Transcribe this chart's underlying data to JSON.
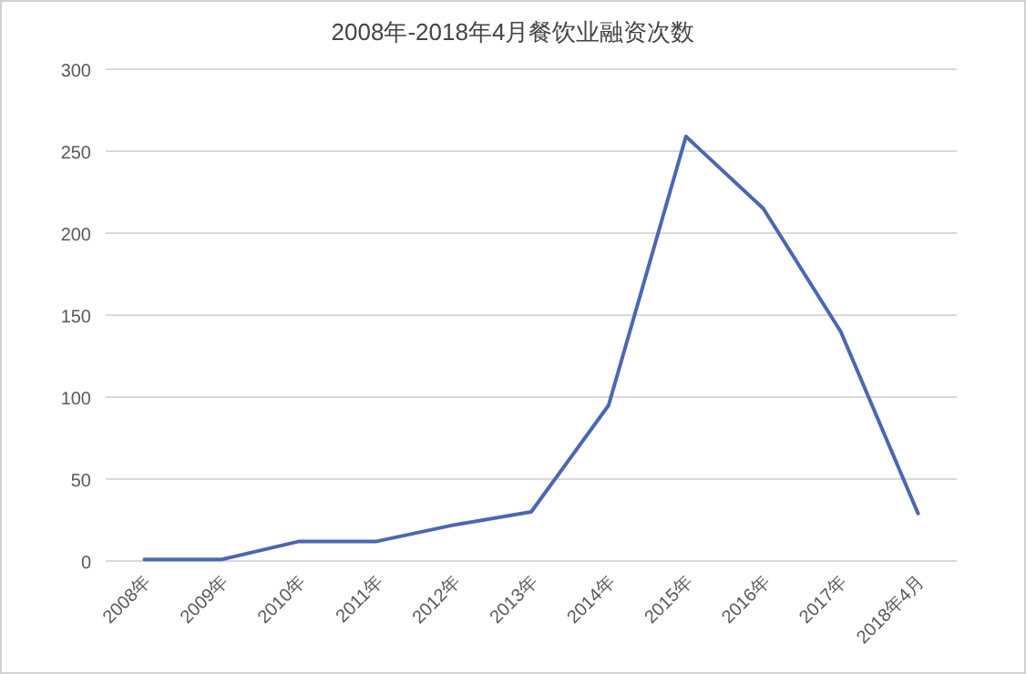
{
  "chart_data": {
    "type": "line",
    "title": "2008年-2018年4月餐饮业融资次数",
    "categories": [
      "2008年",
      "2009年",
      "2010年",
      "2011年",
      "2012年",
      "2013年",
      "2014年",
      "2015年",
      "2016年",
      "2017年",
      "2018年4月"
    ],
    "series": [
      {
        "color": "#4a67b3",
        "values": [
          1,
          1,
          12,
          12,
          22,
          30,
          95,
          259,
          215,
          140,
          29
        ]
      }
    ],
    "ylim": [
      0,
      300
    ],
    "yticks": [
      0,
      50,
      100,
      150,
      200,
      250,
      300
    ],
    "grid": "y",
    "marker": "none",
    "line_style": "solid"
  }
}
